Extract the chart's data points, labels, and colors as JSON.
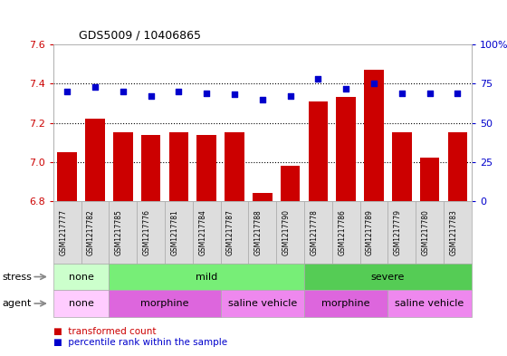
{
  "title": "GDS5009 / 10406865",
  "samples": [
    "GSM1217777",
    "GSM1217782",
    "GSM1217785",
    "GSM1217776",
    "GSM1217781",
    "GSM1217784",
    "GSM1217787",
    "GSM1217788",
    "GSM1217790",
    "GSM1217778",
    "GSM1217786",
    "GSM1217789",
    "GSM1217779",
    "GSM1217780",
    "GSM1217783"
  ],
  "bar_values": [
    7.05,
    7.22,
    7.15,
    7.14,
    7.15,
    7.14,
    7.15,
    6.84,
    6.98,
    7.31,
    7.33,
    7.47,
    7.15,
    7.02,
    7.15
  ],
  "dot_values": [
    70,
    73,
    70,
    67,
    70,
    69,
    68,
    65,
    67,
    78,
    72,
    75,
    69,
    69,
    69
  ],
  "ylim_left": [
    6.8,
    7.6
  ],
  "ylim_right": [
    0,
    100
  ],
  "yticks_left": [
    6.8,
    7.0,
    7.2,
    7.4,
    7.6
  ],
  "yticks_right": [
    0,
    25,
    50,
    75,
    100
  ],
  "bar_color": "#cc0000",
  "dot_color": "#0000cc",
  "bar_width": 0.7,
  "stress_groups": [
    {
      "label": "none",
      "start": 0,
      "end": 2,
      "color": "#ccffcc"
    },
    {
      "label": "mild",
      "start": 2,
      "end": 9,
      "color": "#77ee77"
    },
    {
      "label": "severe",
      "start": 9,
      "end": 15,
      "color": "#55cc55"
    }
  ],
  "agent_groups": [
    {
      "label": "none",
      "start": 0,
      "end": 2,
      "color": "#ffccff"
    },
    {
      "label": "morphine",
      "start": 2,
      "end": 6,
      "color": "#dd66dd"
    },
    {
      "label": "saline vehicle",
      "start": 6,
      "end": 9,
      "color": "#ee88ee"
    },
    {
      "label": "morphine",
      "start": 9,
      "end": 12,
      "color": "#dd66dd"
    },
    {
      "label": "saline vehicle",
      "start": 12,
      "end": 15,
      "color": "#ee88ee"
    }
  ],
  "grid_color": "#000000",
  "background_color": "#ffffff",
  "tick_label_color_left": "#cc0000",
  "tick_label_color_right": "#0000cc"
}
